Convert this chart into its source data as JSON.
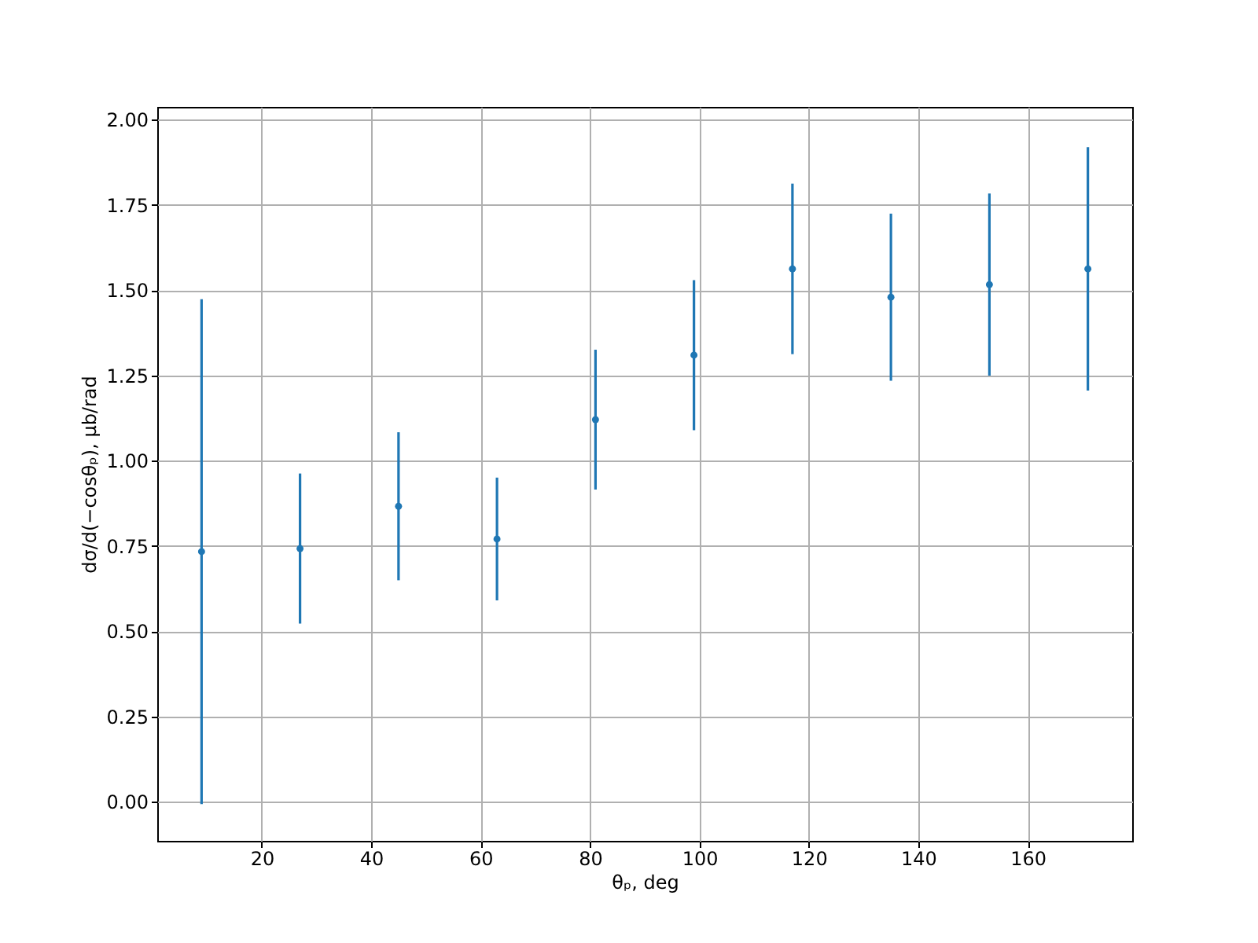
{
  "chart_data": {
    "type": "scatter",
    "xlabel": "θₚ, deg",
    "ylabel": "dσ/d(−cosθₚ), μb/rad",
    "x": [
      9,
      27,
      45,
      63,
      81,
      99,
      117,
      135,
      153,
      171
    ],
    "values": [
      0.733,
      0.742,
      0.866,
      0.77,
      1.12,
      1.309,
      1.562,
      1.479,
      1.516,
      1.562
    ],
    "errors": [
      0.74,
      0.22,
      0.217,
      0.18,
      0.205,
      0.22,
      0.25,
      0.245,
      0.267,
      0.357
    ],
    "color": "#1f77b4",
    "marker": "circle",
    "grid": true,
    "xlim": [
      0.9,
      179.1
    ],
    "xticks": [
      20,
      40,
      60,
      80,
      100,
      120,
      140,
      160
    ],
    "ylim": [
      -0.115,
      2.037
    ],
    "yticks": [
      {
        "value": 0,
        "label": "0.00"
      },
      {
        "value": 0.25,
        "label": "0.25"
      },
      {
        "value": 0.5,
        "label": "0.50"
      },
      {
        "value": 0.75,
        "label": "0.75"
      },
      {
        "value": 1,
        "label": "1.00"
      },
      {
        "value": 1.25,
        "label": "1.25"
      },
      {
        "value": 1.5,
        "label": "1.50"
      },
      {
        "value": 1.75,
        "label": "1.75"
      },
      {
        "value": 2,
        "label": "2.00"
      }
    ]
  }
}
